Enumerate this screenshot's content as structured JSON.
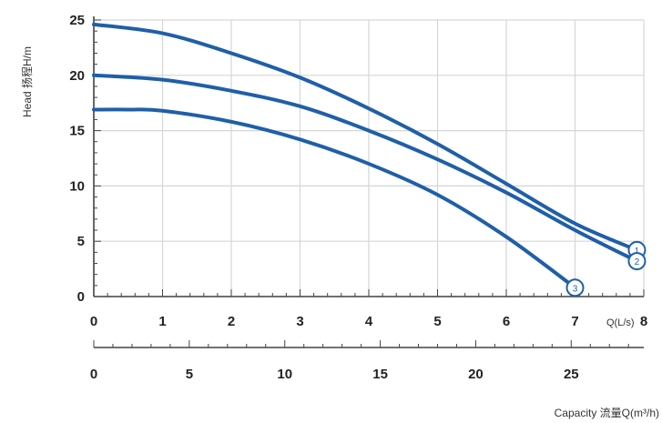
{
  "chart_data": {
    "type": "line",
    "ylabel": "Head 扬程H/m",
    "xlabel": "Capacity 流量Q(m³/h)",
    "x_unit_label": "Q(L/s)",
    "xlim": [
      0,
      8
    ],
    "ylim": [
      0,
      25
    ],
    "x_ticks": [
      "0",
      "1",
      "2",
      "3",
      "4",
      "5",
      "6",
      "7",
      "8"
    ],
    "y_ticks": [
      "0",
      "5",
      "10",
      "15",
      "20",
      "25"
    ],
    "secondary_x_ticks": [
      "0",
      "5",
      "10",
      "15",
      "20",
      "25"
    ],
    "secondary_x_values": [
      0,
      5,
      10,
      15,
      20,
      25
    ],
    "secondary_xlim": [
      0,
      28.8
    ],
    "grid": true,
    "line_color": "#1f5fa8",
    "series": [
      {
        "label": "1",
        "x": [
          0,
          1,
          2,
          3,
          4,
          5,
          6,
          7,
          7.9
        ],
        "y": [
          24.6,
          23.8,
          22.0,
          19.8,
          17.0,
          13.8,
          10.2,
          6.6,
          4.2
        ]
      },
      {
        "label": "2",
        "x": [
          0,
          1,
          2,
          3,
          4,
          5,
          6,
          7,
          7.9
        ],
        "y": [
          20.0,
          19.6,
          18.6,
          17.2,
          15.0,
          12.4,
          9.4,
          6.0,
          3.2
        ]
      },
      {
        "label": "3",
        "x": [
          0,
          0.5,
          1,
          2,
          3,
          4,
          5,
          6,
          7.0
        ],
        "y": [
          16.9,
          16.9,
          16.8,
          15.8,
          14.2,
          12.0,
          9.2,
          5.4,
          0.8
        ]
      }
    ]
  }
}
